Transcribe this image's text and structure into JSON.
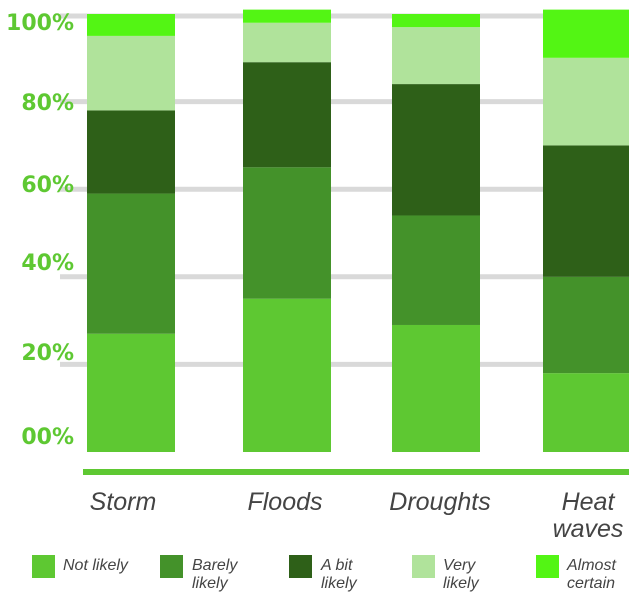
{
  "chart_data": {
    "type": "bar",
    "stacked": true,
    "categories": [
      [
        "Storm"
      ],
      [
        "Floods"
      ],
      [
        "Droughts"
      ],
      [
        "Heat",
        "waves"
      ]
    ],
    "series": [
      {
        "name": [
          "Not likely"
        ],
        "color": "#5ec832",
        "values": [
          27,
          35,
          29,
          18
        ]
      },
      {
        "name": [
          "Barely",
          "likely"
        ],
        "color": "#44922a",
        "values": [
          32,
          30,
          25,
          22
        ]
      },
      {
        "name": [
          "A bit",
          "likely"
        ],
        "color": "#2e6018",
        "values": [
          19,
          24,
          30,
          30
        ]
      },
      {
        "name": [
          "Very",
          "likely"
        ],
        "color": "#b0e39b",
        "values": [
          17,
          9,
          13,
          20
        ]
      },
      {
        "name": [
          "Almost",
          "certain"
        ],
        "color": "#53f514",
        "values": [
          5,
          3,
          3,
          11
        ]
      }
    ],
    "yticks": [
      "00%",
      "20%",
      "40%",
      "60%",
      "80%",
      "100%"
    ],
    "ylim": [
      0,
      100
    ],
    "grid": true,
    "legend_position": "bottom",
    "colors": {
      "tick_label": "#5ec832",
      "grid": "#d9d9d9",
      "baseline": "#5ec832",
      "text": "#444444"
    }
  }
}
